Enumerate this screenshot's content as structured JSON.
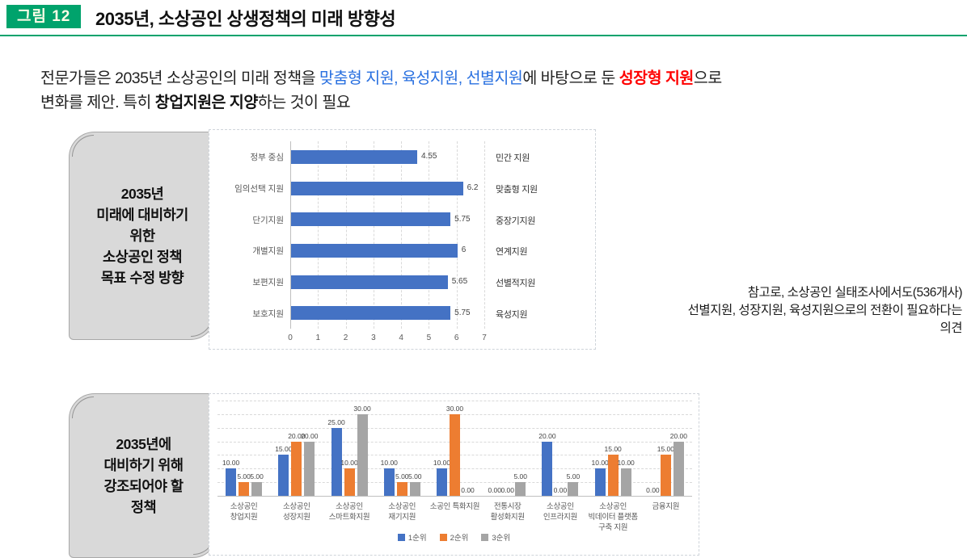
{
  "header": {
    "badge": "그림 12",
    "title": "2035년, 소상공인 상생정책의 미래 방향성"
  },
  "intro": {
    "segments": [
      {
        "style": "normal",
        "text": "전문가들은 2035년 소상공인의 미래 정책을 "
      },
      {
        "style": "blue",
        "text": "맞춤형 지원, 육성지원, 선별지원"
      },
      {
        "style": "normal",
        "text": "에 바탕으로 둔 "
      },
      {
        "style": "red",
        "text": "성장형 지원"
      },
      {
        "style": "normal",
        "text": "으로"
      },
      {
        "break": true
      },
      {
        "style": "normal",
        "text": "변화를 제안. 특히 "
      },
      {
        "style": "bold",
        "text": "창업지원은 지양"
      },
      {
        "style": "normal",
        "text": "하는 것이 필요"
      }
    ]
  },
  "section1": {
    "box_lines": [
      "2035년",
      "미래에 대비하기",
      "위한",
      "소상공인 정책",
      "목표 수정 방향"
    ],
    "annotation_lines": [
      "참고로, 소상공인 실태조사에서도(536개사)",
      "선별지원, 성장지원, 육성지원으로의 전환이 필요하다는",
      "의견"
    ]
  },
  "section2": {
    "box_lines": [
      "2035년에",
      "대비하기 위해",
      "강조되어야 할",
      "정책"
    ]
  },
  "chart_data": [
    {
      "type": "bar",
      "orientation": "horizontal",
      "title": "",
      "categories": [
        "정부 중심",
        "임의선택 지원",
        "단기지원",
        "개별지원",
        "보편지원",
        "보호지원"
      ],
      "values": [
        4.55,
        6.2,
        5.75,
        6,
        5.65,
        5.75
      ],
      "value_labels": [
        "4.55",
        "6.2",
        "5.75",
        "6",
        "5.65",
        "5.75"
      ],
      "right_labels": [
        "민간 지원",
        "맞춤형 지원",
        "중장기지원",
        "연계지원",
        "선별적지원",
        "육성지원"
      ],
      "xlabel": "",
      "ylabel": "",
      "xlim": [
        0,
        7
      ],
      "xticks": [
        0,
        1,
        2,
        3,
        4,
        5,
        6,
        7
      ],
      "grid": true,
      "bar_color": "#4472C4"
    },
    {
      "type": "bar",
      "orientation": "vertical",
      "title": "",
      "categories_lines": [
        [
          "소상공인",
          "창업지원"
        ],
        [
          "소상공인",
          "성장지원"
        ],
        [
          "소상공인",
          "스마트화지원"
        ],
        [
          "소상공인",
          "재기지원"
        ],
        [
          "소공인 특화지원"
        ],
        [
          "전통시장",
          "활성화지원"
        ],
        [
          "소상공인",
          "인프라지원"
        ],
        [
          "소상공인",
          "빅데이터 플랫폼",
          "구축 지원"
        ],
        [
          "금융지원"
        ]
      ],
      "series": [
        {
          "name": "1순위",
          "color": "#4472C4",
          "values": [
            10,
            15,
            25,
            10,
            10,
            0,
            20,
            10,
            0
          ]
        },
        {
          "name": "2순위",
          "color": "#ED7D31",
          "values": [
            5,
            20,
            10,
            5,
            30,
            0,
            0,
            15,
            15
          ]
        },
        {
          "name": "3순위",
          "color": "#A5A5A5",
          "values": [
            5,
            20,
            30,
            5,
            0,
            5,
            5,
            10,
            20
          ]
        }
      ],
      "xlabel": "",
      "ylabel": "",
      "ylim": [
        0,
        35
      ],
      "grid_step": 5,
      "grid": true,
      "data_label_format": "0.00",
      "legend_position": "bottom"
    }
  ],
  "colors": {
    "accent_green": "#00A36C",
    "badge_text": "#FFFDE7",
    "title_black": "#111111",
    "text_blue": "#2970E0",
    "text_red": "#FF0000",
    "bar_blue": "#4472C4",
    "bar_orange": "#ED7D31",
    "bar_gray": "#A5A5A5",
    "box_fill": "#D9D9D9",
    "box_border": "#A8A8A8",
    "grid_line": "#D9D9D9",
    "axis_text": "#595959"
  }
}
